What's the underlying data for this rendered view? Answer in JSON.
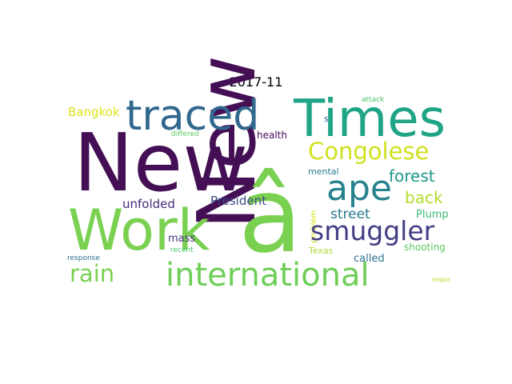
{
  "title": "2017-11",
  "words": [
    {
      "text": "New",
      "color": "#440f54",
      "id": "word-new"
    },
    {
      "text": "â",
      "color": "#7ad151",
      "id": "word-a-circumflex"
    },
    {
      "text": "Times",
      "color": "#20a486",
      "id": "word-times"
    },
    {
      "text": "traced",
      "color": "#31688e",
      "id": "word-traced"
    },
    {
      "text": "Work",
      "color": "#7ad151",
      "id": "word-work"
    },
    {
      "text": "international",
      "color": "#6ece58",
      "id": "word-international"
    },
    {
      "text": "Congolese",
      "color": "#d0e11c",
      "id": "word-congolese"
    },
    {
      "text": "ape",
      "color": "#26828e",
      "id": "word-ape"
    },
    {
      "text": "smuggler",
      "color": "#433e85",
      "id": "word-smuggler"
    },
    {
      "text": "rain",
      "color": "#7ad151",
      "id": "word-rain"
    },
    {
      "text": "forest",
      "color": "#1f9a8a",
      "id": "word-forest"
    },
    {
      "text": "back",
      "color": "#b5de2b",
      "id": "word-back"
    },
    {
      "text": "street",
      "color": "#2a788e",
      "id": "word-street"
    },
    {
      "text": "Bangkok",
      "color": "#dde318",
      "id": "word-bangkok"
    },
    {
      "text": "unfolded",
      "color": "#482878",
      "id": "word-unfolded"
    },
    {
      "text": "President",
      "color": "#3e4a89",
      "id": "word-president"
    },
    {
      "text": "Plump",
      "color": "#3bbb75",
      "id": "word-plump"
    },
    {
      "text": "mass",
      "color": "#46327e",
      "id": "word-mass"
    },
    {
      "text": "called",
      "color": "#2c728e",
      "id": "word-called"
    },
    {
      "text": "shooting",
      "color": "#5ec962",
      "id": "word-shooting"
    },
    {
      "text": "Texas",
      "color": "#a8db34",
      "id": "word-texas"
    },
    {
      "text": "health",
      "color": "#46085c",
      "id": "word-health"
    },
    {
      "text": "mental",
      "color": "#297b8e",
      "id": "word-mental"
    },
    {
      "text": "problem",
      "color": "#d5e21a",
      "id": "word-problem"
    },
    {
      "text": "s",
      "color": "#365c8d",
      "id": "word-s"
    },
    {
      "text": "attack",
      "color": "#4ac16d",
      "id": "word-attack"
    },
    {
      "text": "differed",
      "color": "#5ec962",
      "id": "word-differed"
    },
    {
      "text": "recent",
      "color": "#4ac16d",
      "id": "word-recent"
    },
    {
      "text": "response",
      "color": "#2c728e",
      "id": "word-response"
    },
    {
      "text": "major",
      "color": "#b5de2b",
      "id": "word-major"
    }
  ]
}
